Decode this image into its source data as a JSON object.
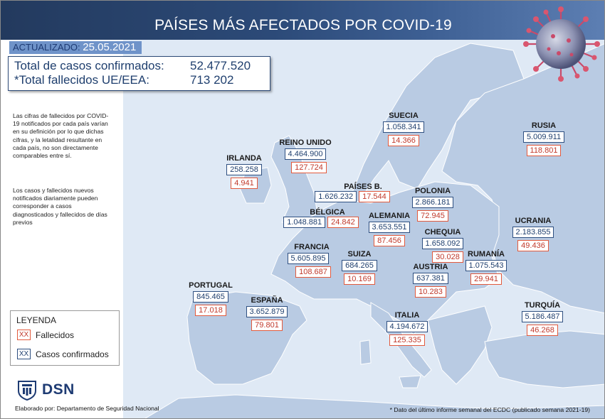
{
  "header": {
    "title": "PAÍSES MÁS AFECTADOS POR COVID-19"
  },
  "updated": {
    "label": "ACTUALIZADO:",
    "date": "25.05.2021"
  },
  "totals": {
    "confirmed_label": "Total de casos confirmados:",
    "confirmed_value": "52.477.520",
    "deaths_label": "*Total fallecidos UE/EEA:",
    "deaths_value": "713 202"
  },
  "notes": {
    "note1": "Las cifras de fallecidos por COVID-19 notificados por cada país varían en su definición por lo que dichas cifras, y la letalidad resultante en cada país, no son directamente comparables entre sí.",
    "note2": "Los casos y fallecidos nuevos notificados diariamente pueden corresponder a casos diagnosticados y fallecidos de días previos"
  },
  "legend": {
    "title": "LEYENDA",
    "sample": "XX",
    "deaths_label": "Fallecidos",
    "cases_label": "Casos confirmados"
  },
  "logo": {
    "text": "DSN"
  },
  "footer": {
    "made_by": "Elaborado por: Departamento de Seguridad Nacional",
    "footnote": "* Dato del último informe semanal del ECDC (publicado semana 2021-19)"
  },
  "colors": {
    "header": "#2c4a78",
    "cases_border": "#2e4f80",
    "deaths_border": "#e25a3d",
    "sea": "#dfe9f5",
    "land": "#b9cbe3"
  },
  "countries": {
    "suecia": {
      "name": "SUECIA",
      "cases": "1.058.341",
      "deaths": "14.366"
    },
    "rusia": {
      "name": "RUSIA",
      "cases": "5.009.911",
      "deaths": "118.801"
    },
    "reino_unido": {
      "name": "REINO UNIDO",
      "cases": "4.464.900",
      "deaths": "127.724"
    },
    "irlanda": {
      "name": "IRLANDA",
      "cases": "258.258",
      "deaths": "4.941"
    },
    "paises_b": {
      "name": "PAÍSES B.",
      "cases": "1.626.232",
      "deaths": "17.544"
    },
    "polonia": {
      "name": "POLONIA",
      "cases": "2.866.181",
      "deaths": "72.945"
    },
    "belgica": {
      "name": "BÉLGICA",
      "cases": "1.048.881",
      "deaths": "24.842"
    },
    "alemania": {
      "name": "ALEMANIA",
      "cases": "3.653.551",
      "deaths": "87.456"
    },
    "ucrania": {
      "name": "UCRANIA",
      "cases": "2.183.855",
      "deaths": "49.436"
    },
    "chequia": {
      "name": "CHEQUIA",
      "cases": "1.658.092",
      "deaths": "30.028"
    },
    "francia": {
      "name": "FRANCIA",
      "cases": "5.605.895",
      "deaths": "108.687"
    },
    "suiza": {
      "name": "SUIZA",
      "cases": "684.265",
      "deaths": "10.169"
    },
    "rumania": {
      "name": "RUMANÍA",
      "cases": "1.075.543",
      "deaths": "29.941"
    },
    "austria": {
      "name": "AUSTRIA",
      "cases": "637.381",
      "deaths": "10.283"
    },
    "portugal": {
      "name": "PORTUGAL",
      "cases": "845.465",
      "deaths": "17.018"
    },
    "espana": {
      "name": "ESPAÑA",
      "cases": "3.652.879",
      "deaths": "79.801"
    },
    "italia": {
      "name": "ITALIA",
      "cases": "4.194.672",
      "deaths": "125.335"
    },
    "turquia": {
      "name": "TURQUÍA",
      "cases": "5.186.487",
      "deaths": "46.268"
    }
  }
}
